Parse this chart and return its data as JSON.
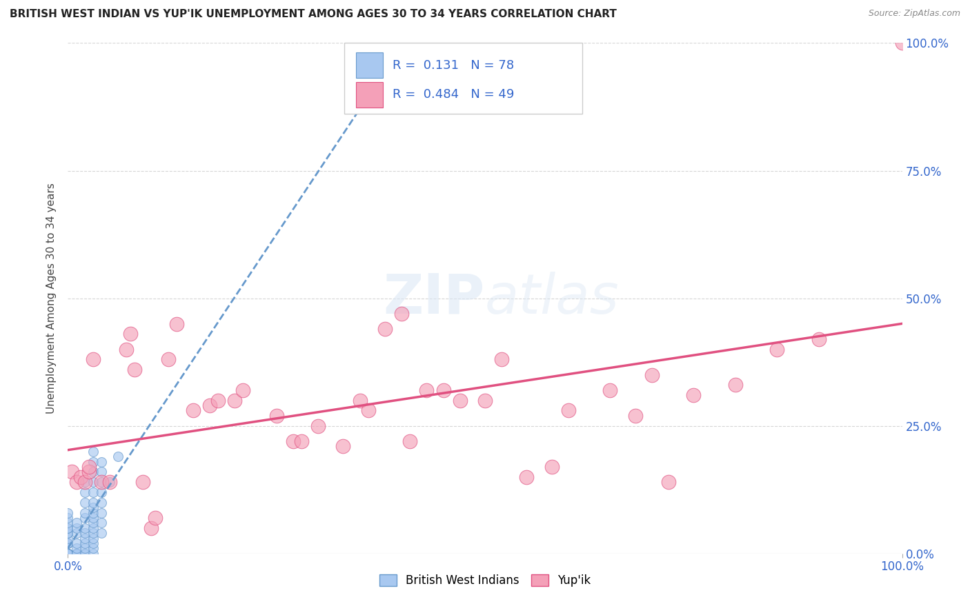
{
  "title": "BRITISH WEST INDIAN VS YUP'IK UNEMPLOYMENT AMONG AGES 30 TO 34 YEARS CORRELATION CHART",
  "source": "Source: ZipAtlas.com",
  "ylabel_label": "Unemployment Among Ages 30 to 34 years",
  "legend_label1": "British West Indians",
  "legend_label2": "Yup'ik",
  "r1": "0.131",
  "n1": "78",
  "r2": "0.484",
  "n2": "49",
  "color_bwi": "#a8c8f0",
  "color_yupik": "#f4a0b8",
  "color_line_bwi": "#6699cc",
  "color_line_yupik": "#e05080",
  "background": "#ffffff",
  "bwi_points": [
    [
      0.0,
      0.0
    ],
    [
      0.0,
      0.0
    ],
    [
      0.0,
      0.0
    ],
    [
      0.0,
      0.0
    ],
    [
      0.0,
      0.0
    ],
    [
      0.0,
      0.0
    ],
    [
      0.0,
      0.0
    ],
    [
      0.0,
      0.0
    ],
    [
      0.0,
      0.0
    ],
    [
      0.0,
      0.0
    ],
    [
      0.0,
      0.0
    ],
    [
      0.0,
      0.0
    ],
    [
      0.0,
      0.0
    ],
    [
      0.0,
      0.0
    ],
    [
      0.0,
      0.0
    ],
    [
      0.0,
      0.0
    ],
    [
      0.0,
      0.0
    ],
    [
      0.0,
      0.0
    ],
    [
      0.0,
      0.0
    ],
    [
      0.0,
      0.0
    ],
    [
      0.0,
      2.0
    ],
    [
      0.0,
      2.0
    ],
    [
      0.0,
      2.0
    ],
    [
      0.0,
      3.0
    ],
    [
      0.0,
      4.0
    ],
    [
      0.0,
      4.0
    ],
    [
      0.0,
      5.0
    ],
    [
      0.0,
      5.0
    ],
    [
      0.0,
      6.0
    ],
    [
      0.0,
      7.0
    ],
    [
      0.0,
      8.0
    ],
    [
      1.0,
      0.0
    ],
    [
      1.0,
      0.0
    ],
    [
      1.0,
      0.0
    ],
    [
      1.0,
      0.0
    ],
    [
      1.0,
      1.0
    ],
    [
      1.0,
      2.0
    ],
    [
      1.0,
      4.0
    ],
    [
      1.0,
      5.0
    ],
    [
      1.0,
      6.0
    ],
    [
      2.0,
      0.0
    ],
    [
      2.0,
      0.0
    ],
    [
      2.0,
      1.0
    ],
    [
      2.0,
      2.0
    ],
    [
      2.0,
      3.0
    ],
    [
      2.0,
      4.0
    ],
    [
      2.0,
      5.0
    ],
    [
      2.0,
      7.0
    ],
    [
      2.0,
      8.0
    ],
    [
      2.0,
      10.0
    ],
    [
      2.0,
      12.0
    ],
    [
      2.0,
      14.0
    ],
    [
      3.0,
      0.0
    ],
    [
      3.0,
      1.0
    ],
    [
      3.0,
      2.0
    ],
    [
      3.0,
      3.0
    ],
    [
      3.0,
      4.0
    ],
    [
      3.0,
      5.0
    ],
    [
      3.0,
      6.0
    ],
    [
      3.0,
      7.0
    ],
    [
      3.0,
      8.0
    ],
    [
      3.0,
      9.0
    ],
    [
      3.0,
      10.0
    ],
    [
      3.0,
      12.0
    ],
    [
      3.0,
      14.0
    ],
    [
      3.0,
      16.0
    ],
    [
      3.0,
      18.0
    ],
    [
      3.0,
      20.0
    ],
    [
      4.0,
      4.0
    ],
    [
      4.0,
      6.0
    ],
    [
      4.0,
      8.0
    ],
    [
      4.0,
      10.0
    ],
    [
      4.0,
      12.0
    ],
    [
      4.0,
      14.0
    ],
    [
      4.0,
      16.0
    ],
    [
      4.0,
      18.0
    ],
    [
      5.0,
      14.0
    ],
    [
      6.0,
      19.0
    ]
  ],
  "yupik_points": [
    [
      0.5,
      16.0
    ],
    [
      1.0,
      14.0
    ],
    [
      1.5,
      15.0
    ],
    [
      2.0,
      14.0
    ],
    [
      2.5,
      16.0
    ],
    [
      2.5,
      17.0
    ],
    [
      3.0,
      38.0
    ],
    [
      4.0,
      14.0
    ],
    [
      5.0,
      14.0
    ],
    [
      7.0,
      40.0
    ],
    [
      7.5,
      43.0
    ],
    [
      8.0,
      36.0
    ],
    [
      9.0,
      14.0
    ],
    [
      10.0,
      5.0
    ],
    [
      10.5,
      7.0
    ],
    [
      12.0,
      38.0
    ],
    [
      13.0,
      45.0
    ],
    [
      15.0,
      28.0
    ],
    [
      17.0,
      29.0
    ],
    [
      18.0,
      30.0
    ],
    [
      20.0,
      30.0
    ],
    [
      21.0,
      32.0
    ],
    [
      25.0,
      27.0
    ],
    [
      27.0,
      22.0
    ],
    [
      28.0,
      22.0
    ],
    [
      30.0,
      25.0
    ],
    [
      33.0,
      21.0
    ],
    [
      35.0,
      30.0
    ],
    [
      36.0,
      28.0
    ],
    [
      38.0,
      44.0
    ],
    [
      40.0,
      47.0
    ],
    [
      41.0,
      22.0
    ],
    [
      43.0,
      32.0
    ],
    [
      45.0,
      32.0
    ],
    [
      47.0,
      30.0
    ],
    [
      50.0,
      30.0
    ],
    [
      52.0,
      38.0
    ],
    [
      55.0,
      15.0
    ],
    [
      58.0,
      17.0
    ],
    [
      60.0,
      28.0
    ],
    [
      65.0,
      32.0
    ],
    [
      68.0,
      27.0
    ],
    [
      70.0,
      35.0
    ],
    [
      72.0,
      14.0
    ],
    [
      75.0,
      31.0
    ],
    [
      80.0,
      33.0
    ],
    [
      85.0,
      40.0
    ],
    [
      90.0,
      42.0
    ],
    [
      100.0,
      100.0
    ]
  ],
  "xlim": [
    0.0,
    100.0
  ],
  "ylim": [
    0.0,
    100.0
  ],
  "xticks": [
    0.0,
    100.0
  ],
  "xticklabels": [
    "0.0%",
    "100.0%"
  ],
  "yticks": [
    0.0,
    25.0,
    50.0,
    75.0,
    100.0
  ],
  "yticklabels": [
    "0.0%",
    "25.0%",
    "50.0%",
    "75.0%",
    "100.0%"
  ],
  "tick_color": "#3366cc",
  "title_fontsize": 11,
  "source_fontsize": 9,
  "ylabel_fontsize": 11
}
